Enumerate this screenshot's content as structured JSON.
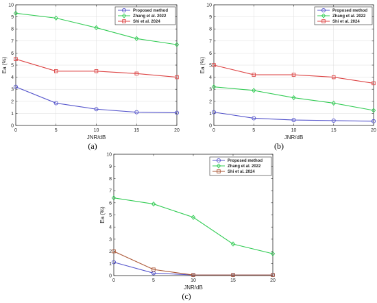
{
  "chart_data": [
    {
      "type": "line",
      "caption": "(a)",
      "x": [
        0,
        5,
        10,
        15,
        20
      ],
      "xticks": [
        0,
        5,
        10,
        15,
        20
      ],
      "xlabel": "JNR/dB",
      "ylabel": "Ea (%)",
      "xlim": [
        0,
        20
      ],
      "ylim": [
        0,
        10
      ],
      "yticks": [
        0,
        1,
        2,
        3,
        4,
        5,
        6,
        7,
        8,
        9,
        10
      ],
      "grid": true,
      "legend_position": "top-right",
      "series": [
        {
          "name": "Proposed method",
          "color": "#5555cc",
          "marker": "circle",
          "values": [
            3.2,
            1.85,
            1.35,
            1.1,
            1.05
          ]
        },
        {
          "name": "Zhang et al. 2022",
          "color": "#33cc55",
          "marker": "diamond",
          "values": [
            9.3,
            8.9,
            8.1,
            7.2,
            6.7
          ]
        },
        {
          "name": "Shi et al. 2024",
          "color": "#dd4444",
          "marker": "square",
          "values": [
            5.5,
            4.5,
            4.5,
            4.3,
            4.0
          ]
        }
      ]
    },
    {
      "type": "line",
      "caption": "(b)",
      "x": [
        0,
        5,
        10,
        15,
        20
      ],
      "xticks": [
        0,
        5,
        10,
        15,
        20
      ],
      "xlabel": "JNR/dB",
      "ylabel": "Ea (%)",
      "xlim": [
        0,
        20
      ],
      "ylim": [
        0,
        10
      ],
      "yticks": [
        0,
        1,
        2,
        3,
        4,
        5,
        6,
        7,
        8,
        9,
        10
      ],
      "grid": true,
      "legend_position": "top-right",
      "series": [
        {
          "name": "Proposed method",
          "color": "#5555cc",
          "marker": "circle",
          "values": [
            1.1,
            0.6,
            0.45,
            0.4,
            0.35
          ]
        },
        {
          "name": "Zhang et al. 2022",
          "color": "#33cc55",
          "marker": "diamond",
          "values": [
            3.2,
            2.9,
            2.3,
            1.85,
            1.25
          ]
        },
        {
          "name": "Shi et al. 2024",
          "color": "#dd4444",
          "marker": "square",
          "values": [
            5.0,
            4.2,
            4.2,
            4.0,
            3.5
          ]
        }
      ]
    },
    {
      "type": "line",
      "caption": "(c)",
      "x": [
        0,
        5,
        10,
        15,
        20
      ],
      "xticks": [
        0,
        5,
        10,
        15,
        20
      ],
      "xlabel": "JNR/dB",
      "ylabel": "Ea (%)",
      "xlim": [
        0,
        20
      ],
      "ylim": [
        0,
        10
      ],
      "yticks": [
        0,
        1,
        2,
        3,
        4,
        5,
        6,
        7,
        8,
        9,
        10
      ],
      "grid": false,
      "legend_position": "top-right",
      "series": [
        {
          "name": "Proposed method",
          "color": "#5555cc",
          "marker": "circle",
          "values": [
            1.1,
            0.2,
            0.05,
            0.05,
            0.05
          ]
        },
        {
          "name": "Zhang et al. 2022",
          "color": "#33cc55",
          "marker": "diamond",
          "values": [
            6.4,
            5.9,
            4.8,
            2.6,
            1.8
          ]
        },
        {
          "name": "Shi et al. 2024",
          "color": "#aa5533",
          "marker": "square",
          "values": [
            2.0,
            0.5,
            0.05,
            0.05,
            0.05
          ]
        }
      ]
    }
  ]
}
